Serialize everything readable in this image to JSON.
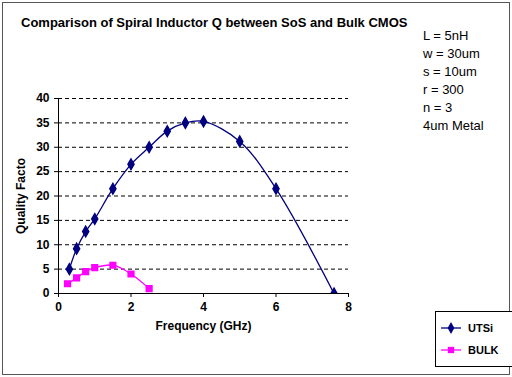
{
  "chart_data": {
    "type": "line",
    "title": "Comparison of Spiral Inductor Q between SoS and Bulk CMOS",
    "annotations": [
      "L = 5nH",
      "w = 30um",
      "s = 10um",
      "r = 300",
      "n = 3",
      "4um Metal"
    ],
    "x_label": "Frequency (GHz)",
    "y_label": "Quality Facto",
    "series": [
      {
        "name": "UTSi",
        "color": "#000080",
        "marker": "diamond",
        "line_style": "smooth",
        "x": [
          0.3,
          0.5,
          0.75,
          1,
          1.5,
          2,
          2.5,
          3,
          3.5,
          4,
          5,
          6,
          7.6
        ],
        "values": [
          5,
          9.2,
          12.7,
          15.3,
          21.5,
          26.5,
          30,
          33.3,
          35,
          35.3,
          31.2,
          21.5,
          0
        ]
      },
      {
        "name": "BULK",
        "color": "#ff00ff",
        "marker": "square",
        "line_style": "smooth",
        "x": [
          0.25,
          0.5,
          0.75,
          1,
          1.5,
          2,
          2.5
        ],
        "values": [
          2,
          3.2,
          4.5,
          5.3,
          5.8,
          4,
          1
        ]
      }
    ],
    "xlim": [
      0,
      8
    ],
    "xticks": [
      0,
      2,
      4,
      6,
      8
    ],
    "ylim": [
      0,
      40
    ],
    "yticks": [
      0,
      5,
      10,
      15,
      20,
      25,
      30,
      35,
      40
    ],
    "grid": true,
    "legend": "right"
  }
}
